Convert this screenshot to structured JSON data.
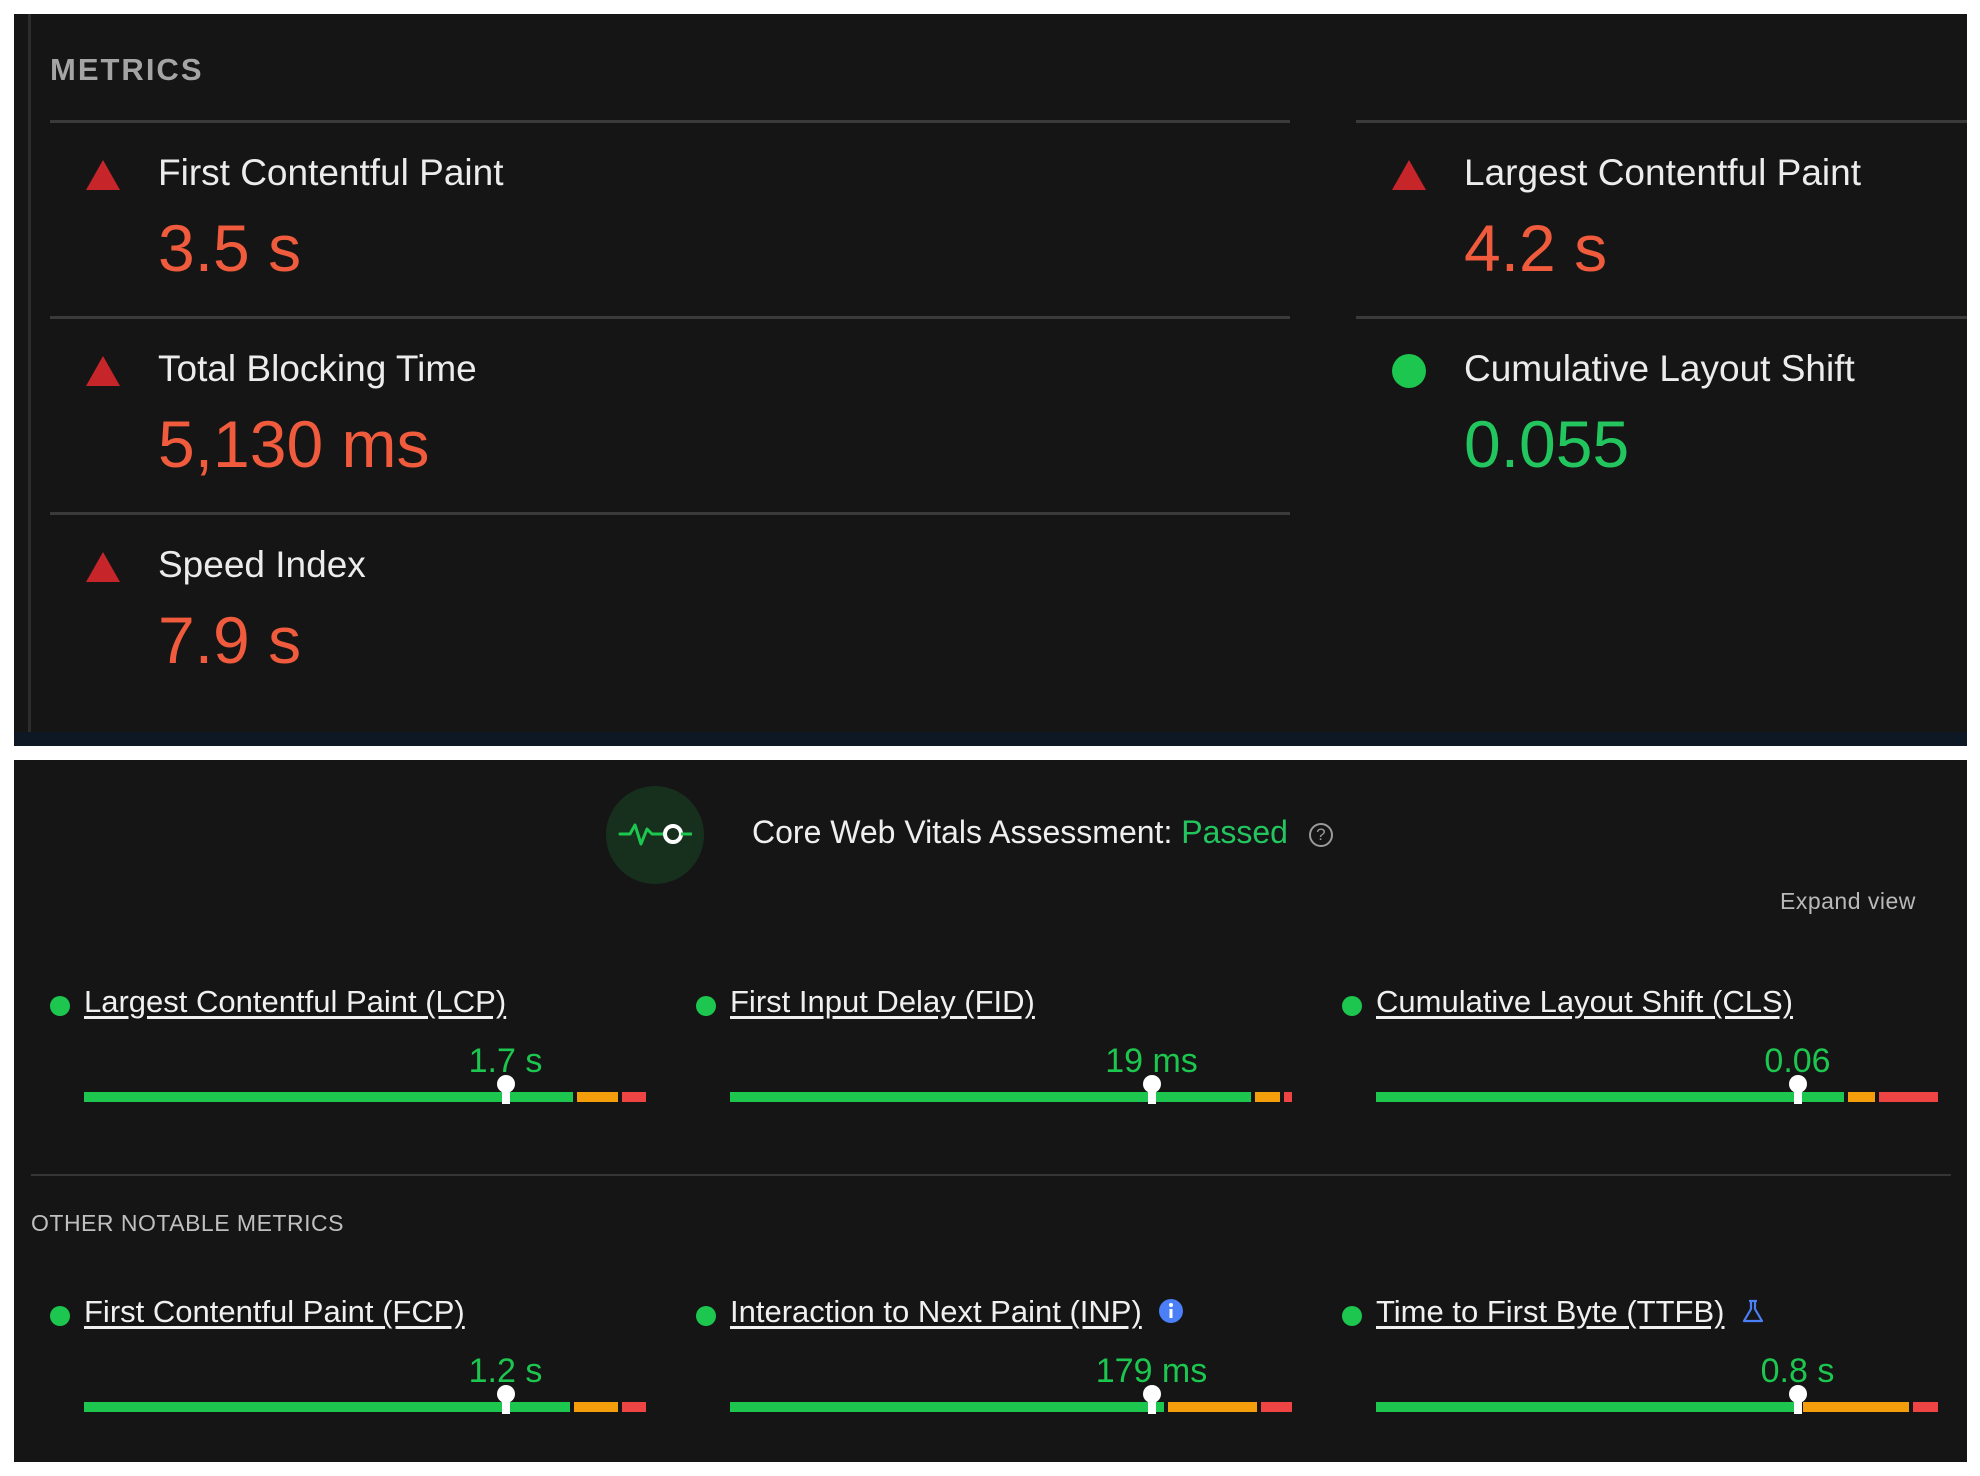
{
  "lighthouse": {
    "section_title": "METRICS",
    "metrics": [
      {
        "label": "First Contentful Paint",
        "value": "3.5 s",
        "status": "poor"
      },
      {
        "label": "Largest Contentful Paint",
        "value": "4.2 s",
        "status": "poor"
      },
      {
        "label": "Total Blocking Time",
        "value": "5,130 ms",
        "status": "poor"
      },
      {
        "label": "Cumulative Layout Shift",
        "value": "0.055",
        "status": "good"
      },
      {
        "label": "Speed Index",
        "value": "7.9 s",
        "status": "poor"
      }
    ]
  },
  "crux": {
    "assessment_label": "Core Web Vitals Assessment:",
    "assessment_result": "Passed",
    "help_icon": "question-circle-icon",
    "expand_view": "Expand view",
    "core_vitals": [
      {
        "label": "Largest Contentful Paint (LCP)",
        "value": "1.7 s",
        "marker_fraction": 0.75,
        "good_fraction": 0.877,
        "ni_fraction": 0.08,
        "poor_fraction": 0.043
      },
      {
        "label": "First Input Delay (FID)",
        "value": "19 ms",
        "marker_fraction": 0.75,
        "good_fraction": 0.935,
        "ni_fraction": 0.05,
        "poor_fraction": 0.015
      },
      {
        "label": "Cumulative Layout Shift (CLS)",
        "value": "0.06",
        "marker_fraction": 0.75,
        "good_fraction": 0.84,
        "ni_fraction": 0.055,
        "poor_fraction": 0.105
      }
    ],
    "other_title": "OTHER NOTABLE METRICS",
    "other_metrics": [
      {
        "label": "First Contentful Paint (FCP)",
        "value": "1.2 s",
        "marker_fraction": 0.75,
        "good_fraction": 0.872,
        "ni_fraction": 0.085,
        "poor_fraction": 0.043,
        "extra_icon": ""
      },
      {
        "label": "Interaction to Next Paint (INP)",
        "value": "179 ms",
        "marker_fraction": 0.75,
        "good_fraction": 0.78,
        "ni_fraction": 0.165,
        "poor_fraction": 0.055,
        "extra_icon": "info-icon"
      },
      {
        "label": "Time to First Byte (TTFB)",
        "value": "0.8 s",
        "marker_fraction": 0.75,
        "good_fraction": 0.76,
        "ni_fraction": 0.195,
        "poor_fraction": 0.045,
        "extra_icon": "flask-icon"
      }
    ]
  },
  "colors": {
    "good": "#1cc64f",
    "needs_improvement": "#f59e0b",
    "poor": "#ef4444",
    "poor_value": "#ef5b3c",
    "good_value": "#22c55e"
  }
}
